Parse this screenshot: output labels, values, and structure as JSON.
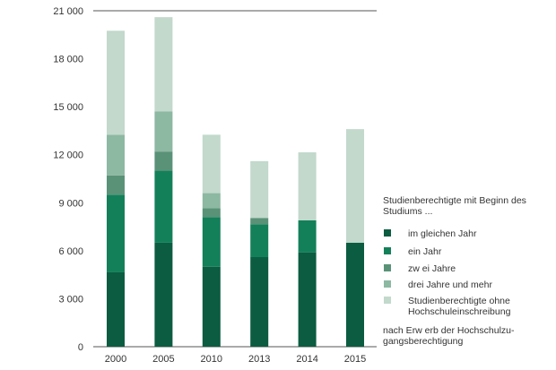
{
  "chart_data": {
    "type": "bar",
    "stacked": true,
    "categories": [
      "2000",
      "2005",
      "2010",
      "2013",
      "2014",
      "2015"
    ],
    "ylim": [
      0,
      21000
    ],
    "yticks": [
      0,
      3000,
      6000,
      9000,
      12000,
      15000,
      18000,
      21000
    ],
    "ytick_labels": [
      "0",
      "3 000",
      "6 000",
      "9 000",
      "12 000",
      "15 000",
      "18 000",
      "21 000"
    ],
    "grid": false,
    "legend_position": "right",
    "legend_title": "Studienberechtigte mit Beginn des Studiums ...",
    "series": [
      {
        "name": "im gleichen Jahr",
        "color": "#0b5c41",
        "values": [
          4650,
          6500,
          5000,
          5600,
          5900,
          6500
        ]
      },
      {
        "name": "ein Jahr",
        "color": "#13805a",
        "values": [
          4850,
          4500,
          3100,
          2050,
          2000,
          0
        ]
      },
      {
        "name": "zw ei Jahre",
        "color": "#5a9278",
        "values": [
          1200,
          1200,
          550,
          400,
          0,
          0
        ]
      },
      {
        "name": "drei Jahre und mehr",
        "color": "#8db8a2",
        "values": [
          2550,
          2500,
          950,
          0,
          0,
          0
        ]
      },
      {
        "name": "Studienberechtigte ohne Hochschuleinschreibung",
        "color": "#c2d9cc",
        "values": [
          6500,
          5900,
          3650,
          3550,
          4250,
          7100
        ]
      }
    ],
    "legend_labels": [
      [
        "im gleichen Jahr"
      ],
      [
        "ein Jahr"
      ],
      [
        "zw ei Jahre"
      ],
      [
        "drei Jahre und mehr"
      ],
      [
        "Studienberechtigte ohne",
        "Hochschuleinschreibung"
      ]
    ],
    "legend_footer": [
      "nach Erw erb der Hochschulzu-",
      "gangsberechtigung"
    ]
  }
}
